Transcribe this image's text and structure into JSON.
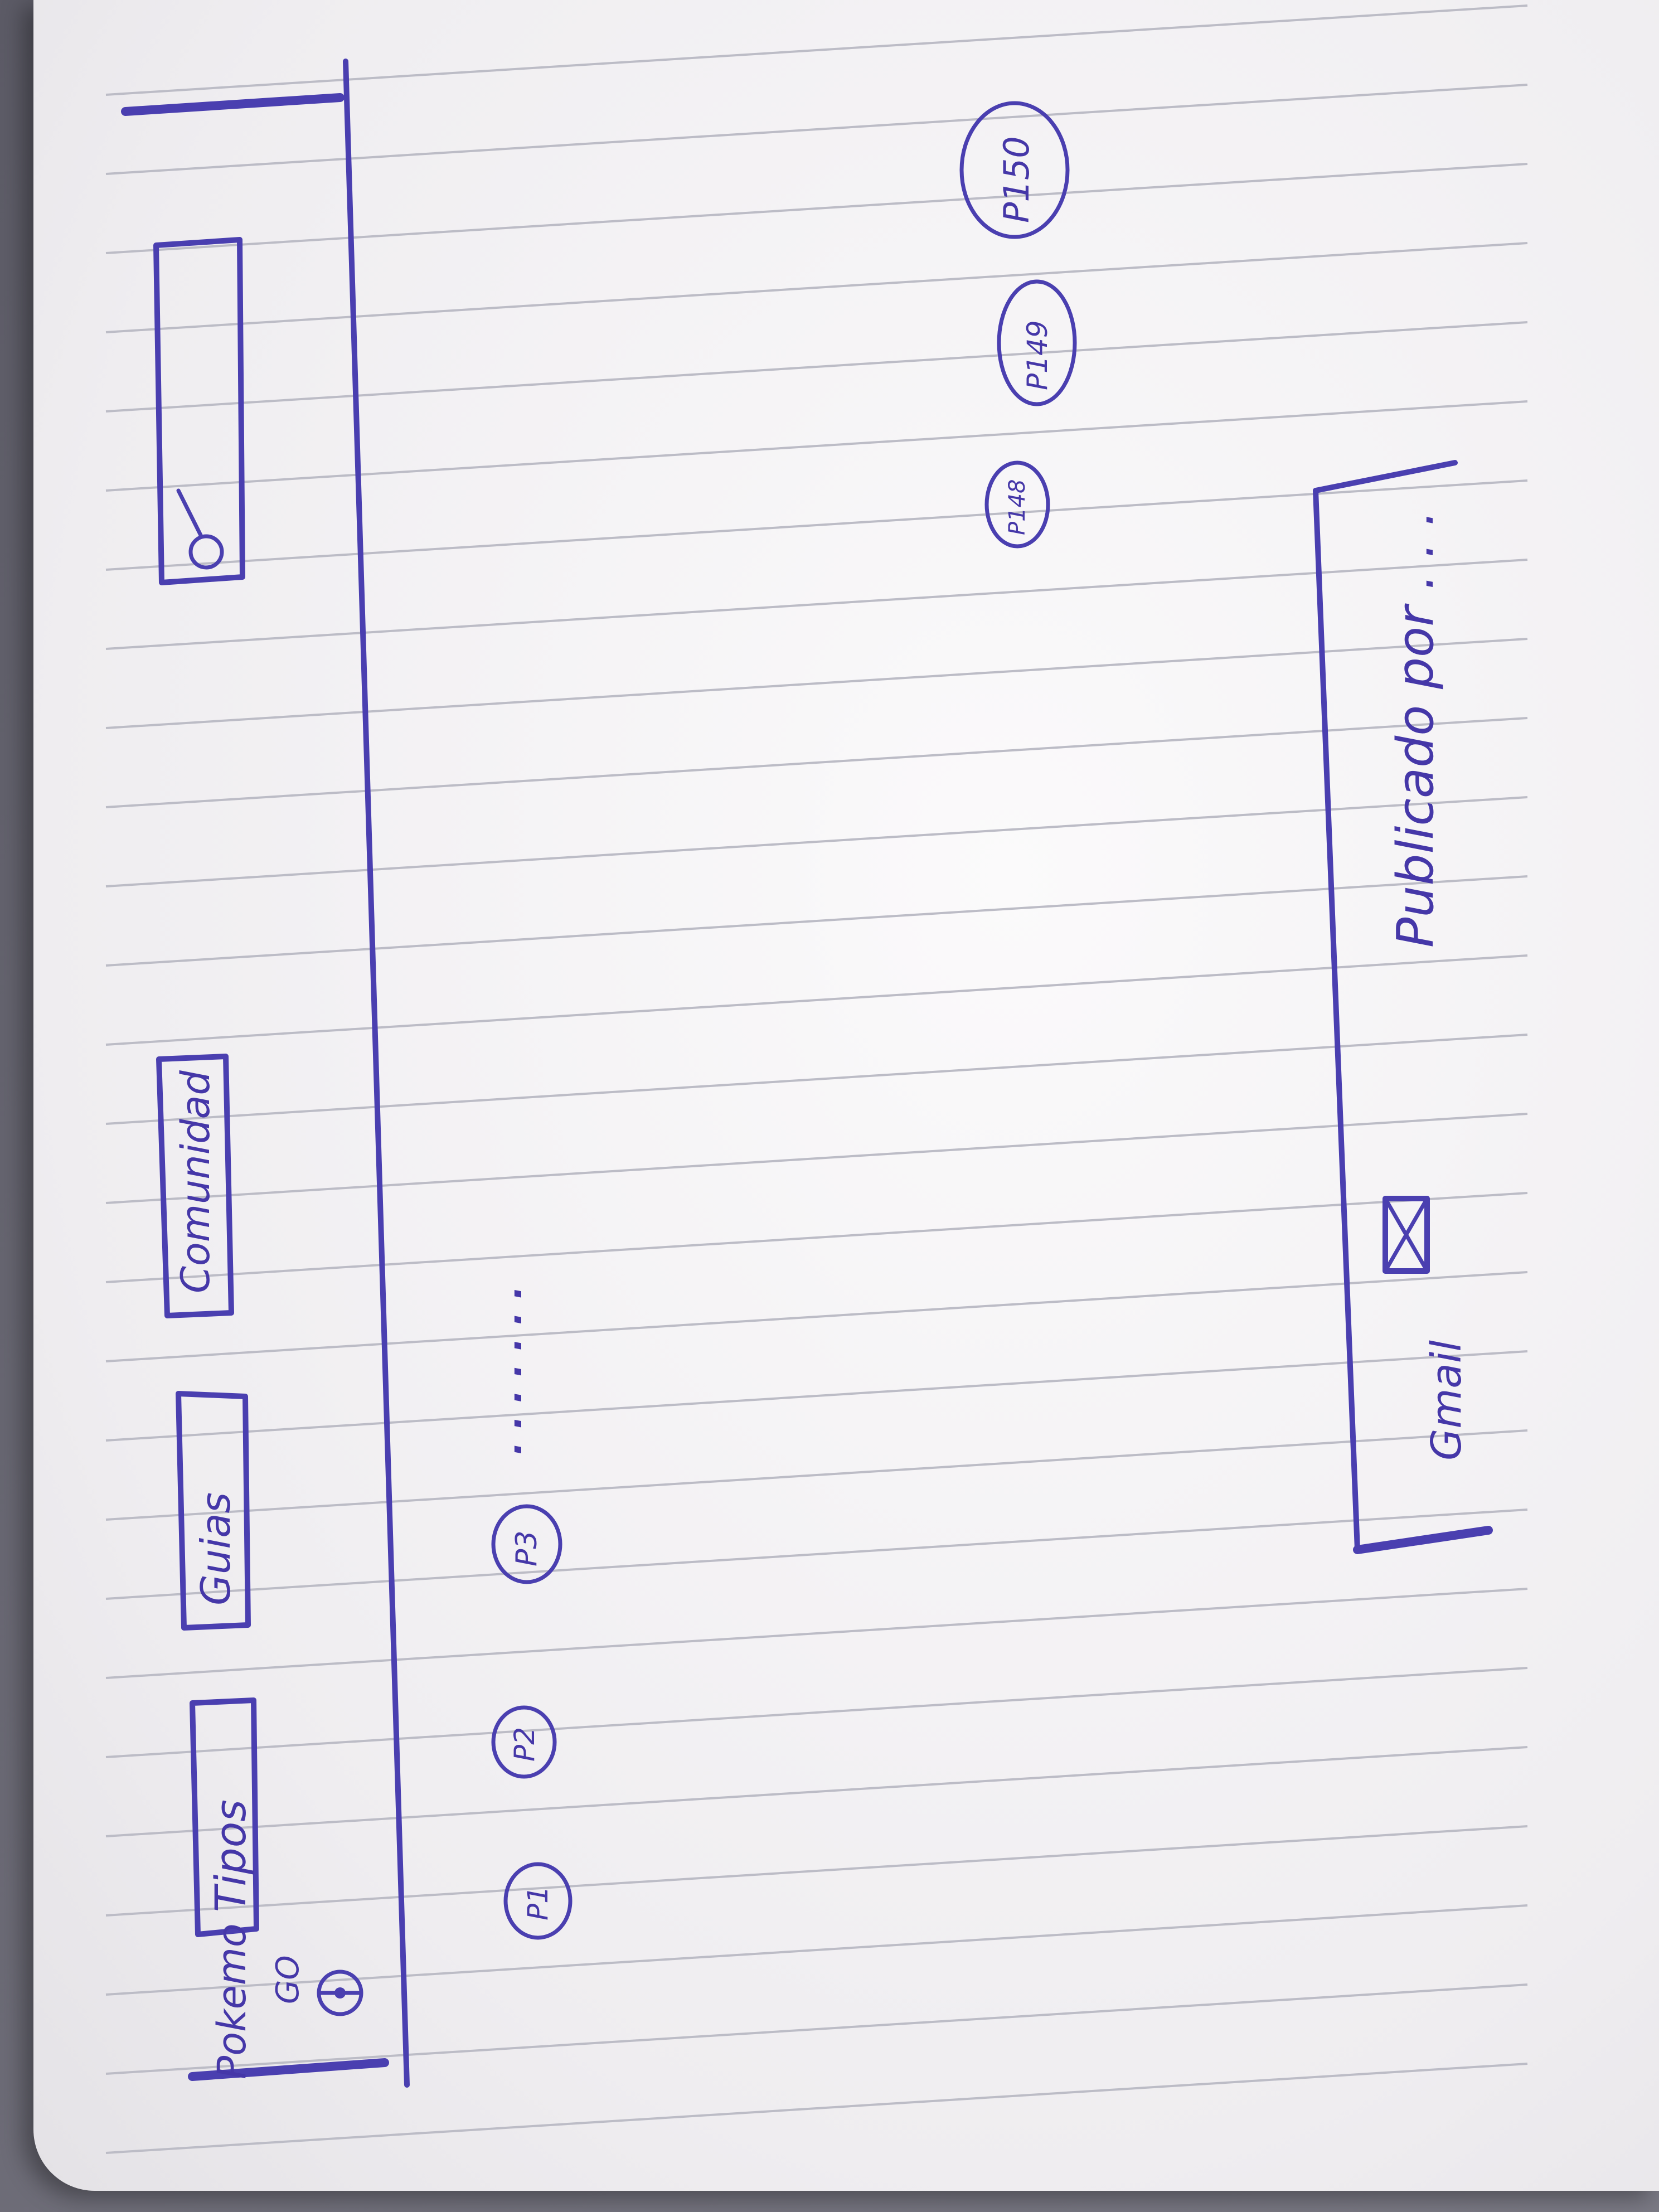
{
  "sketch": {
    "logo_text": "Pokemo",
    "logo_subtext": "GO",
    "nav": {
      "tipos": "Tipos",
      "guias": "Guias",
      "comunidad": "Comunidad"
    },
    "pagination": {
      "p1": "P1",
      "p2": "P2",
      "p3": "P3",
      "ellipsis": ". . . . . . .",
      "p148": "P148",
      "p149": "P149",
      "p150": "P150"
    },
    "footer": {
      "gmail_label": "Gmail",
      "published_by": "Publicado por . . ."
    },
    "icons": [
      "pokeball-icon",
      "search-icon",
      "mail-icon"
    ],
    "ink_color": "#4a3fb0"
  }
}
